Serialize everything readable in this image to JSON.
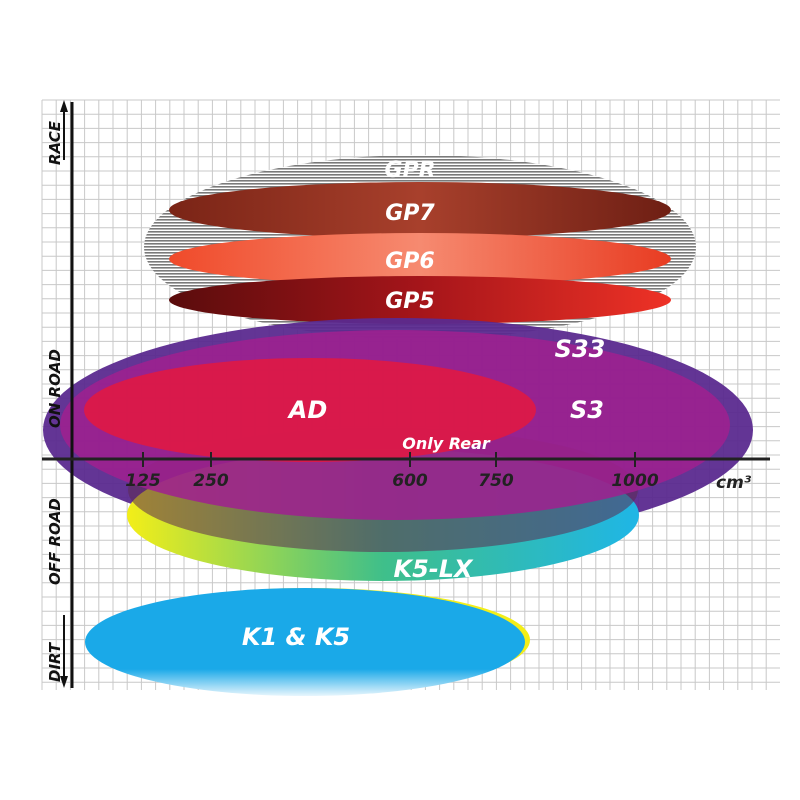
{
  "colors": {
    "GPR": "#8a8a8a",
    "GP7": "#8b2a1c",
    "GP6": "#ee4a2c",
    "GP5": "#c4161c",
    "S33": "#5b2a8f",
    "S3": "#a0208f",
    "AD": "#e4183f",
    "K5-LX": [
      "#f3ee18",
      "#2cb39a",
      "#1fb6e6"
    ],
    "K1 & K5": "#1aa9e8"
  },
  "axis": {
    "x_unit": "cm³",
    "x_ticks": [
      "125",
      "250",
      "600",
      "750",
      "1000"
    ],
    "y_top": [
      "RACE",
      "ON ROAD"
    ],
    "y_bottom": [
      "OFF ROAD",
      "DIRT"
    ]
  },
  "products": [
    {
      "name": "GPR"
    },
    {
      "name": "GP7"
    },
    {
      "name": "GP6"
    },
    {
      "name": "GP5"
    },
    {
      "name": "S33"
    },
    {
      "name": "S3"
    },
    {
      "name": "AD"
    },
    {
      "name": "K5-LX"
    },
    {
      "name": "K1 & K5"
    }
  ],
  "note": "Only Rear"
}
